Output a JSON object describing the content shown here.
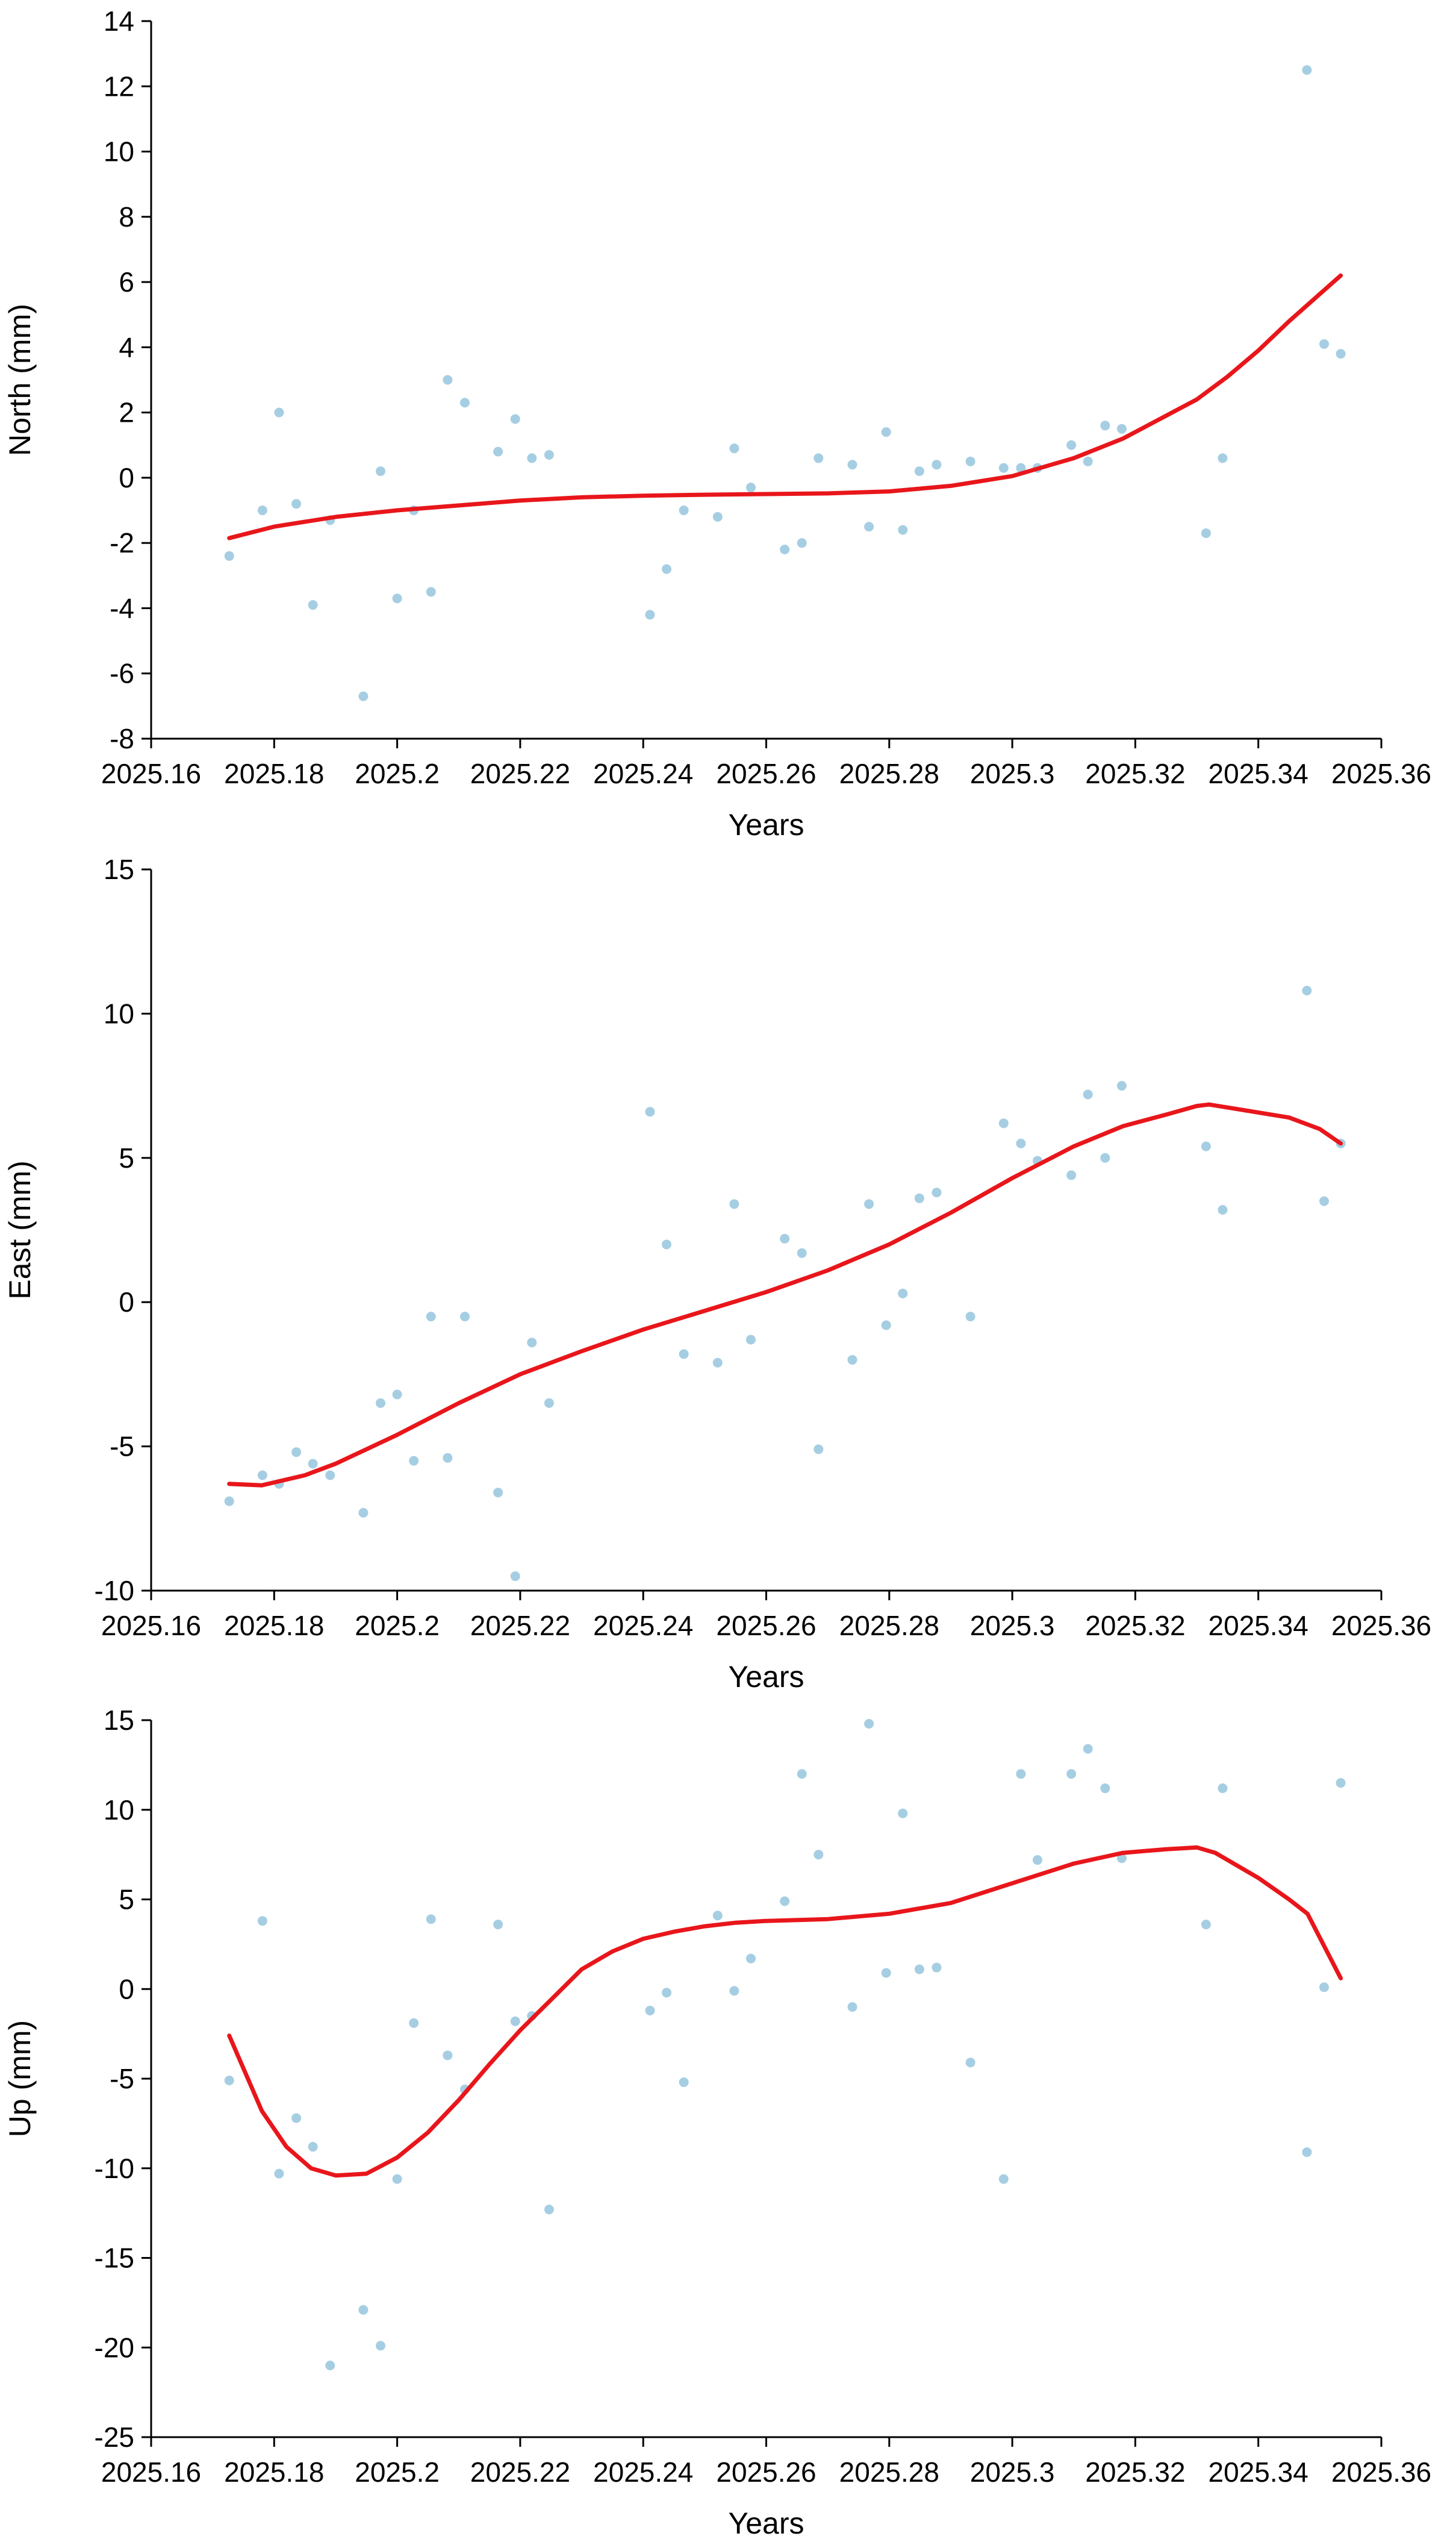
{
  "colors": {
    "fit_line": "#e8161b",
    "points": "#a6cee3",
    "axis": "#000000"
  },
  "chart_data": [
    {
      "type": "scatter",
      "xlabel": "Years",
      "ylabel": "North (mm)",
      "xlim": [
        2025.16,
        2025.36
      ],
      "ylim": [
        -8,
        14
      ],
      "xticks": [
        "2025.16",
        "2025.18",
        "2025.2",
        "2025.22",
        "2025.24",
        "2025.26",
        "2025.28",
        "2025.3",
        "2025.32",
        "2025.34",
        "2025.36"
      ],
      "yticks": [
        "-8",
        "-6",
        "-4",
        "-2",
        "0",
        "2",
        "4",
        "6",
        "8",
        "10",
        "12",
        "14"
      ],
      "series": [
        {
          "kind": "points",
          "x": [
            2025.1727,
            2025.1781,
            2025.1808,
            2025.1836,
            2025.1863,
            2025.1891,
            2025.1945,
            2025.1973,
            2025.2,
            2025.2027,
            2025.2055,
            2025.2082,
            2025.211,
            2025.2164,
            2025.2192,
            2025.2219,
            2025.2247,
            2025.2411,
            2025.2438,
            2025.2466,
            2025.2521,
            2025.2548,
            2025.2575,
            2025.263,
            2025.2658,
            2025.2685,
            2025.274,
            2025.2767,
            2025.2795,
            2025.2822,
            2025.2849,
            2025.2877,
            2025.2932,
            2025.2986,
            2025.3014,
            2025.3041,
            2025.3096,
            2025.3123,
            2025.3151,
            2025.3178,
            2025.3315,
            2025.3342,
            2025.3479,
            2025.3507,
            2025.3534
          ],
          "y": [
            -2.4,
            -1.0,
            2.0,
            -0.8,
            -3.9,
            -1.3,
            -6.7,
            0.2,
            -3.7,
            -1.0,
            -3.5,
            3.0,
            2.3,
            0.8,
            1.8,
            0.6,
            0.7,
            -4.2,
            -2.8,
            -1.0,
            -1.2,
            0.9,
            -0.3,
            -2.2,
            -2.0,
            0.6,
            0.4,
            -1.5,
            1.4,
            -1.6,
            0.2,
            0.4,
            0.5,
            0.3,
            0.3,
            0.3,
            1.0,
            0.5,
            1.6,
            1.5,
            -1.7,
            0.6,
            12.5,
            4.1,
            3.8
          ]
        },
        {
          "kind": "line",
          "x": [
            2025.1727,
            2025.18,
            2025.19,
            2025.2,
            2025.21,
            2025.22,
            2025.23,
            2025.24,
            2025.25,
            2025.26,
            2025.27,
            2025.28,
            2025.29,
            2025.3,
            2025.31,
            2025.318,
            2025.326,
            2025.33,
            2025.335,
            2025.34,
            2025.345,
            2025.3534
          ],
          "y": [
            -1.85,
            -1.5,
            -1.2,
            -1.0,
            -0.85,
            -0.7,
            -0.6,
            -0.55,
            -0.52,
            -0.5,
            -0.48,
            -0.42,
            -0.25,
            0.05,
            0.6,
            1.2,
            2.0,
            2.4,
            3.1,
            3.9,
            4.8,
            6.2
          ]
        }
      ]
    },
    {
      "type": "scatter",
      "xlabel": "Years",
      "ylabel": "East (mm)",
      "xlim": [
        2025.16,
        2025.36
      ],
      "ylim": [
        -10,
        15
      ],
      "xticks": [
        "2025.16",
        "2025.18",
        "2025.2",
        "2025.22",
        "2025.24",
        "2025.26",
        "2025.28",
        "2025.3",
        "2025.32",
        "2025.34",
        "2025.36"
      ],
      "yticks": [
        "-10",
        "-5",
        "0",
        "5",
        "10",
        "15"
      ],
      "series": [
        {
          "kind": "points",
          "x": [
            2025.1727,
            2025.1781,
            2025.1808,
            2025.1836,
            2025.1863,
            2025.1891,
            2025.1945,
            2025.1973,
            2025.2,
            2025.2027,
            2025.2055,
            2025.2082,
            2025.211,
            2025.2164,
            2025.2192,
            2025.2219,
            2025.2247,
            2025.2411,
            2025.2438,
            2025.2466,
            2025.2521,
            2025.2548,
            2025.2575,
            2025.263,
            2025.2658,
            2025.2685,
            2025.274,
            2025.2767,
            2025.2795,
            2025.2822,
            2025.2849,
            2025.2877,
            2025.2932,
            2025.2986,
            2025.3014,
            2025.3041,
            2025.3096,
            2025.3123,
            2025.3151,
            2025.3178,
            2025.3315,
            2025.3342,
            2025.3479,
            2025.3507,
            2025.3534
          ],
          "y": [
            -6.9,
            -6.0,
            -6.3,
            -5.2,
            -5.6,
            -6.0,
            -7.3,
            -3.5,
            -3.2,
            -5.5,
            -0.5,
            -5.4,
            -0.5,
            -6.6,
            -9.5,
            -1.4,
            -3.5,
            6.6,
            2.0,
            -1.8,
            -2.1,
            3.4,
            -1.3,
            2.2,
            1.7,
            -5.1,
            -2.0,
            3.4,
            -0.8,
            0.3,
            3.6,
            3.8,
            -0.5,
            6.2,
            5.5,
            4.9,
            4.4,
            7.2,
            5.0,
            7.5,
            5.4,
            3.2,
            10.8,
            3.5,
            5.5
          ]
        },
        {
          "kind": "line",
          "x": [
            2025.1727,
            2025.178,
            2025.185,
            2025.19,
            2025.195,
            2025.2,
            2025.21,
            2025.22,
            2025.23,
            2025.24,
            2025.25,
            2025.26,
            2025.27,
            2025.28,
            2025.29,
            2025.3,
            2025.31,
            2025.318,
            2025.325,
            2025.33,
            2025.332,
            2025.345,
            2025.35,
            2025.3534
          ],
          "y": [
            -6.3,
            -6.35,
            -6.0,
            -5.6,
            -5.1,
            -4.6,
            -3.5,
            -2.5,
            -1.7,
            -0.95,
            -0.3,
            0.35,
            1.1,
            2.0,
            3.1,
            4.3,
            5.4,
            6.1,
            6.5,
            6.8,
            6.85,
            6.4,
            6.0,
            5.5
          ]
        }
      ]
    },
    {
      "type": "scatter",
      "xlabel": "Years",
      "ylabel": "Up (mm)",
      "xlim": [
        2025.16,
        2025.36
      ],
      "ylim": [
        -25,
        15
      ],
      "xticks": [
        "2025.16",
        "2025.18",
        "2025.2",
        "2025.22",
        "2025.24",
        "2025.26",
        "2025.28",
        "2025.3",
        "2025.32",
        "2025.34",
        "2025.36"
      ],
      "yticks": [
        "-25",
        "-20",
        "-15",
        "-10",
        "-5",
        "0",
        "5",
        "10",
        "15"
      ],
      "series": [
        {
          "kind": "points",
          "x": [
            2025.1727,
            2025.1781,
            2025.1808,
            2025.1836,
            2025.1863,
            2025.1891,
            2025.1945,
            2025.1973,
            2025.2,
            2025.2027,
            2025.2055,
            2025.2082,
            2025.211,
            2025.2164,
            2025.2192,
            2025.2219,
            2025.2247,
            2025.2411,
            2025.2438,
            2025.2466,
            2025.2521,
            2025.2548,
            2025.2575,
            2025.263,
            2025.2658,
            2025.2685,
            2025.274,
            2025.2767,
            2025.2795,
            2025.2822,
            2025.2849,
            2025.2877,
            2025.2932,
            2025.2986,
            2025.3014,
            2025.3041,
            2025.3096,
            2025.3123,
            2025.3151,
            2025.3178,
            2025.3315,
            2025.3342,
            2025.3479,
            2025.3507,
            2025.3534
          ],
          "y": [
            -5.1,
            3.8,
            -10.3,
            -7.2,
            -8.8,
            -21.0,
            -17.9,
            -19.9,
            -10.6,
            -1.9,
            3.9,
            -3.7,
            -5.6,
            3.6,
            -1.8,
            -1.5,
            -12.3,
            -1.2,
            -0.2,
            -5.2,
            4.1,
            -0.1,
            1.7,
            4.9,
            12.0,
            7.5,
            -1.0,
            14.8,
            0.9,
            9.8,
            1.1,
            1.2,
            -4.1,
            -10.6,
            12.0,
            7.2,
            12.0,
            13.4,
            11.2,
            7.3,
            3.6,
            11.2,
            -9.1,
            0.1,
            11.5
          ]
        },
        {
          "kind": "line",
          "x": [
            2025.1727,
            2025.178,
            2025.182,
            2025.186,
            2025.19,
            2025.195,
            2025.2,
            2025.205,
            2025.21,
            2025.215,
            2025.22,
            2025.225,
            2025.23,
            2025.235,
            2025.24,
            2025.245,
            2025.25,
            2025.255,
            2025.26,
            2025.27,
            2025.28,
            2025.29,
            2025.3,
            2025.31,
            2025.318,
            2025.325,
            2025.33,
            2025.333,
            2025.34,
            2025.345,
            2025.348,
            2025.3534
          ],
          "y": [
            -2.6,
            -6.8,
            -8.8,
            -10.0,
            -10.4,
            -10.3,
            -9.4,
            -8.0,
            -6.2,
            -4.2,
            -2.3,
            -0.6,
            1.1,
            2.1,
            2.8,
            3.2,
            3.5,
            3.7,
            3.8,
            3.9,
            4.2,
            4.8,
            5.9,
            7.0,
            7.6,
            7.8,
            7.9,
            7.6,
            6.2,
            5.0,
            4.2,
            0.6
          ]
        }
      ]
    }
  ]
}
